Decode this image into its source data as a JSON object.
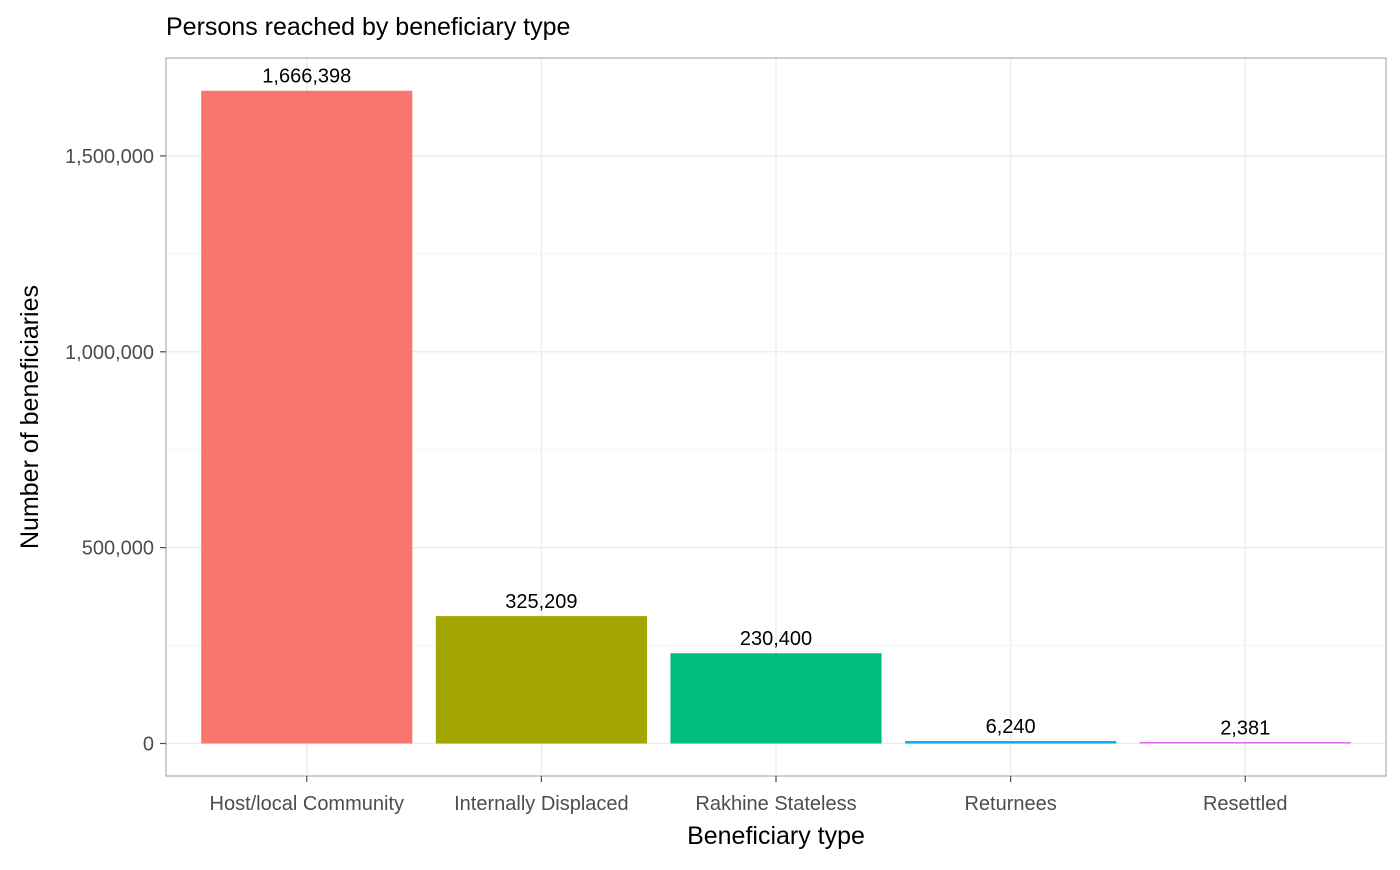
{
  "chart_data": {
    "type": "bar",
    "title": "Persons reached by beneficiary type",
    "xlabel": "Beneficiary type",
    "ylabel": "Number of beneficiaries",
    "categories": [
      "Host/local Community",
      "Internally Displaced",
      "Rakhine Stateless",
      "Returnees",
      "Resettled"
    ],
    "values": [
      1666398,
      325209,
      230400,
      6240,
      2381
    ],
    "value_labels": [
      "1,666,398",
      "325,209",
      "230,400",
      "6,240",
      "2,381"
    ],
    "colors": [
      "#F8766D",
      "#A3A500",
      "#00BF7D",
      "#00B0F6",
      "#E76BF3"
    ],
    "ylim": [
      -83000,
      1750000
    ],
    "y_ticks": [
      0,
      500000,
      1000000,
      1500000
    ],
    "y_tick_labels": [
      "0",
      "500,000",
      "1,000,000",
      "1,500,000"
    ],
    "grid": true,
    "legend": "none"
  }
}
